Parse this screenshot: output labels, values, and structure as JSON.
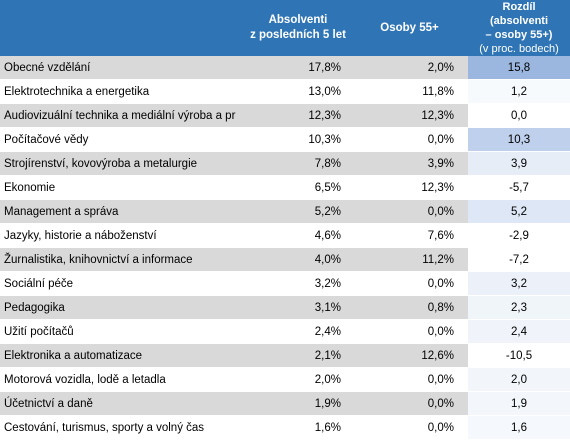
{
  "chart_data": {
    "type": "table",
    "columns": [
      "",
      "Absolventi z posledních 5 let",
      "Osoby 55+",
      "Rozdíl (absolventi – osoby 55+) (v proc. bodech)"
    ],
    "header": {
      "grad_line1": "Absolventi",
      "grad_line2": "z posledních 5 let",
      "older": "Osoby 55+",
      "diff_line1": "Rozdíl (absolventi",
      "diff_line2": "– osoby 55+)",
      "diff_line3": "(v proc. bodech)"
    },
    "rows": [
      {
        "field": "Obecné vzdělání",
        "graduates": "17,8%",
        "older": "2,0%",
        "difference": "15,8",
        "diff_value": 15.8
      },
      {
        "field": "Elektrotechnika a energetika",
        "graduates": "13,0%",
        "older": "11,8%",
        "difference": "1,2",
        "diff_value": 1.2
      },
      {
        "field": "Audiovizuální technika a mediální výroba a pr",
        "graduates": "12,3%",
        "older": "12,3%",
        "difference": "0,0",
        "diff_value": 0.0
      },
      {
        "field": "Počítačové vědy",
        "graduates": "10,3%",
        "older": "0,0%",
        "difference": "10,3",
        "diff_value": 10.3
      },
      {
        "field": "Strojírenství, kovovýroba a metalurgie",
        "graduates": "7,8%",
        "older": "3,9%",
        "difference": "3,9",
        "diff_value": 3.9
      },
      {
        "field": "Ekonomie",
        "graduates": "6,5%",
        "older": "12,3%",
        "difference": "-5,7",
        "diff_value": -5.7
      },
      {
        "field": "Management a správa",
        "graduates": "5,2%",
        "older": "0,0%",
        "difference": "5,2",
        "diff_value": 5.2
      },
      {
        "field": "Jazyky, historie a náboženství",
        "graduates": "4,6%",
        "older": "7,6%",
        "difference": "-2,9",
        "diff_value": -2.9
      },
      {
        "field": "Žurnalistika, knihovnictví a informace",
        "graduates": "4,0%",
        "older": "11,2%",
        "difference": "-7,2",
        "diff_value": -7.2
      },
      {
        "field": "Sociální péče",
        "graduates": "3,2%",
        "older": "0,0%",
        "difference": "3,2",
        "diff_value": 3.2
      },
      {
        "field": "Pedagogika",
        "graduates": "3,1%",
        "older": "0,8%",
        "difference": "2,3",
        "diff_value": 2.3
      },
      {
        "field": "Užití počítačů",
        "graduates": "2,4%",
        "older": "0,0%",
        "difference": "2,4",
        "diff_value": 2.4
      },
      {
        "field": "Elektronika a automatizace",
        "graduates": "2,1%",
        "older": "12,6%",
        "difference": "-10,5",
        "diff_value": -10.5
      },
      {
        "field": "Motorová vozidla, lodě a letadla",
        "graduates": "2,0%",
        "older": "0,0%",
        "difference": "2,0",
        "diff_value": 2.0
      },
      {
        "field": "Účetnictví a daně",
        "graduates": "1,9%",
        "older": "0,0%",
        "difference": "1,9",
        "diff_value": 1.9
      },
      {
        "field": "Cestování, turismus, sporty a volný čas",
        "graduates": "1,6%",
        "older": "0,0%",
        "difference": "1,6",
        "diff_value": 1.6
      }
    ]
  },
  "colors": {
    "header_bg": "#2f75b5",
    "header_text": "#ffffff",
    "row_shade": "#d9d9d9",
    "scale_low": "#ffffff",
    "scale_high": "#9bb7e0"
  }
}
